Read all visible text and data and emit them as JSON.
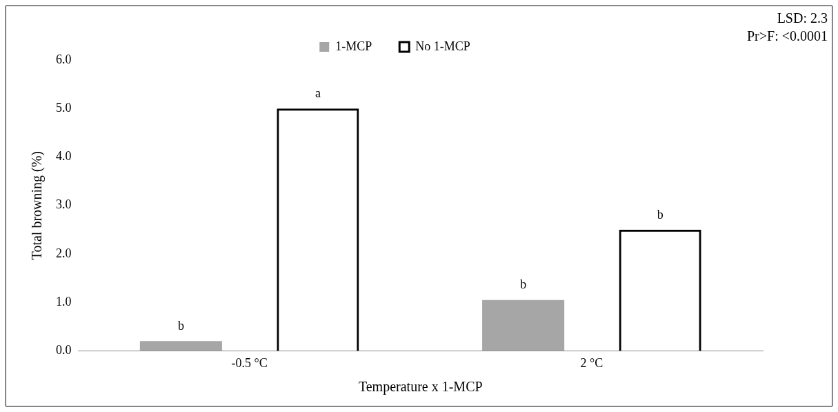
{
  "chart_data": {
    "type": "bar",
    "xlabel": "Temperature x 1-MCP",
    "ylabel": "Total browning (%)",
    "categories": [
      "-0.5 °C",
      "2 °C"
    ],
    "series": [
      {
        "name": "1-MCP",
        "color": "#a6a6a6",
        "values": [
          0.2,
          1.05
        ]
      },
      {
        "name": "No 1-MCP",
        "color": "#000000",
        "values": [
          5.0,
          2.5
        ]
      }
    ],
    "ylim": [
      0,
      6
    ],
    "yticks": [
      {
        "value": 0,
        "label": "0.0"
      },
      {
        "value": 1,
        "label": "1.0"
      },
      {
        "value": 2,
        "label": "2.0"
      },
      {
        "value": 3,
        "label": "3.0"
      },
      {
        "value": 4,
        "label": "4.0"
      },
      {
        "value": 5,
        "label": "5.0"
      },
      {
        "value": 6,
        "label": "6.0"
      }
    ],
    "grid": false,
    "legend": "top",
    "annotations": [
      "b",
      "a",
      "b",
      "b",
      "LSD: 2.3",
      "Pr>F: <0.0001"
    ]
  }
}
